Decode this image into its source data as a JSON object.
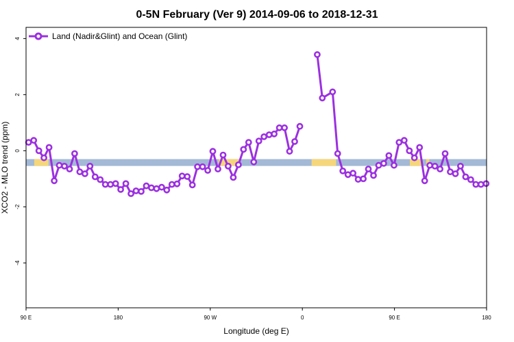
{
  "chart_data": {
    "type": "line",
    "title": "0-5N February (Ver 9)   2014-09-06 to 2018-12-31",
    "xlabel": "Longitude (deg E)",
    "ylabel": "XCO2 - MLO trend (ppm)",
    "x_ticks": [
      {
        "lon": 90,
        "label": "90 E"
      },
      {
        "lon": 180,
        "label": "180"
      },
      {
        "lon": 270,
        "label": "90 W"
      },
      {
        "lon": 360,
        "label": "0"
      },
      {
        "lon": 450,
        "label": "90 E"
      },
      {
        "lon": 540,
        "label": "180"
      }
    ],
    "y_ticks": [
      {
        "value": -4,
        "label": "-4"
      },
      {
        "value": -2,
        "label": "-2"
      },
      {
        "value": 0,
        "label": "0"
      },
      {
        "value": 2,
        "label": "2"
      },
      {
        "value": 4,
        "label": "4"
      }
    ],
    "xlim": [
      90,
      540
    ],
    "ylim": [
      -5.6,
      4.4
    ],
    "grid": false,
    "legend_position": "top-left",
    "series": [
      {
        "name": "Land (Nadir&Glint) and Ocean (Glint)",
        "color": "#9b30e0",
        "segments": [
          [
            {
              "x": 92.5,
              "y": 0.3
            },
            {
              "x": 97.5,
              "y": 0.37
            },
            {
              "x": 102.5,
              "y": 0.0
            },
            {
              "x": 107.5,
              "y": -0.25
            },
            {
              "x": 112.5,
              "y": 0.12
            },
            {
              "x": 117.5,
              "y": -1.07
            },
            {
              "x": 122.5,
              "y": -0.52
            },
            {
              "x": 127.5,
              "y": -0.55
            },
            {
              "x": 132.5,
              "y": -0.65
            },
            {
              "x": 137.5,
              "y": -0.1
            },
            {
              "x": 142.5,
              "y": -0.75
            },
            {
              "x": 147.5,
              "y": -0.82
            },
            {
              "x": 152.5,
              "y": -0.55
            },
            {
              "x": 157.5,
              "y": -0.93
            },
            {
              "x": 162.5,
              "y": -1.03
            },
            {
              "x": 167.5,
              "y": -1.2
            },
            {
              "x": 172.5,
              "y": -1.2
            },
            {
              "x": 177.5,
              "y": -1.17
            },
            {
              "x": 182.5,
              "y": -1.38
            },
            {
              "x": 187.5,
              "y": -1.17
            },
            {
              "x": 192.5,
              "y": -1.53
            },
            {
              "x": 197.5,
              "y": -1.43
            },
            {
              "x": 202.5,
              "y": -1.45
            },
            {
              "x": 207.5,
              "y": -1.25
            },
            {
              "x": 212.5,
              "y": -1.32
            },
            {
              "x": 217.5,
              "y": -1.35
            },
            {
              "x": 222.5,
              "y": -1.3
            },
            {
              "x": 227.5,
              "y": -1.4
            },
            {
              "x": 232.5,
              "y": -1.2
            },
            {
              "x": 237.5,
              "y": -1.18
            },
            {
              "x": 242.5,
              "y": -0.9
            },
            {
              "x": 247.5,
              "y": -0.92
            },
            {
              "x": 252.5,
              "y": -1.22
            },
            {
              "x": 257.5,
              "y": -0.57
            },
            {
              "x": 262.5,
              "y": -0.57
            },
            {
              "x": 267.5,
              "y": -0.7
            },
            {
              "x": 272.5,
              "y": -0.02
            },
            {
              "x": 277.5,
              "y": -0.65
            },
            {
              "x": 282.5,
              "y": -0.15
            },
            {
              "x": 287.5,
              "y": -0.55
            },
            {
              "x": 292.5,
              "y": -0.95
            },
            {
              "x": 297.5,
              "y": -0.5
            },
            {
              "x": 302.5,
              "y": 0.05
            },
            {
              "x": 307.5,
              "y": 0.3
            },
            {
              "x": 312.5,
              "y": -0.4
            },
            {
              "x": 317.5,
              "y": 0.35
            },
            {
              "x": 322.5,
              "y": 0.5
            },
            {
              "x": 327.5,
              "y": 0.57
            },
            {
              "x": 332.5,
              "y": 0.6
            },
            {
              "x": 337.5,
              "y": 0.82
            },
            {
              "x": 342.5,
              "y": 0.82
            },
            {
              "x": 347.5,
              "y": -0.02
            },
            {
              "x": 352.5,
              "y": 0.33
            },
            {
              "x": 357.5,
              "y": 0.87
            }
          ],
          [
            {
              "x": 374.5,
              "y": 3.43
            },
            {
              "x": 379.5,
              "y": 1.88
            },
            {
              "x": 389.5,
              "y": 2.1
            },
            {
              "x": 394.5,
              "y": -0.1
            },
            {
              "x": 399.5,
              "y": -0.72
            },
            {
              "x": 404.5,
              "y": -0.85
            },
            {
              "x": 409.5,
              "y": -0.8
            },
            {
              "x": 414.5,
              "y": -1.02
            },
            {
              "x": 419.5,
              "y": -1.0
            },
            {
              "x": 424.5,
              "y": -0.65
            },
            {
              "x": 429.5,
              "y": -0.88
            },
            {
              "x": 434.5,
              "y": -0.52
            },
            {
              "x": 439.5,
              "y": -0.45
            },
            {
              "x": 444.5,
              "y": -0.17
            },
            {
              "x": 449.5,
              "y": -0.52
            },
            {
              "x": 454.5,
              "y": 0.3
            },
            {
              "x": 459.5,
              "y": 0.37
            },
            {
              "x": 464.5,
              "y": 0.0
            },
            {
              "x": 469.5,
              "y": -0.25
            },
            {
              "x": 474.5,
              "y": 0.12
            },
            {
              "x": 479.5,
              "y": -1.07
            },
            {
              "x": 484.5,
              "y": -0.52
            },
            {
              "x": 489.5,
              "y": -0.55
            },
            {
              "x": 494.5,
              "y": -0.65
            },
            {
              "x": 499.5,
              "y": -0.1
            },
            {
              "x": 504.5,
              "y": -0.75
            },
            {
              "x": 509.5,
              "y": -0.82
            },
            {
              "x": 514.5,
              "y": -0.55
            },
            {
              "x": 519.5,
              "y": -0.93
            },
            {
              "x": 524.5,
              "y": -1.03
            },
            {
              "x": 529.5,
              "y": -1.2
            },
            {
              "x": 534.5,
              "y": -1.2
            },
            {
              "x": 539.5,
              "y": -1.17
            }
          ]
        ]
      }
    ],
    "surface_band": {
      "y": -0.42,
      "ocean_color": "#a3b9d6",
      "land_color": "#f5d67a",
      "land_ranges": [
        [
          98,
          112
        ],
        [
          278,
          298
        ],
        [
          369,
          393
        ],
        [
          465,
          476
        ],
        [
          481,
          484
        ]
      ]
    }
  }
}
